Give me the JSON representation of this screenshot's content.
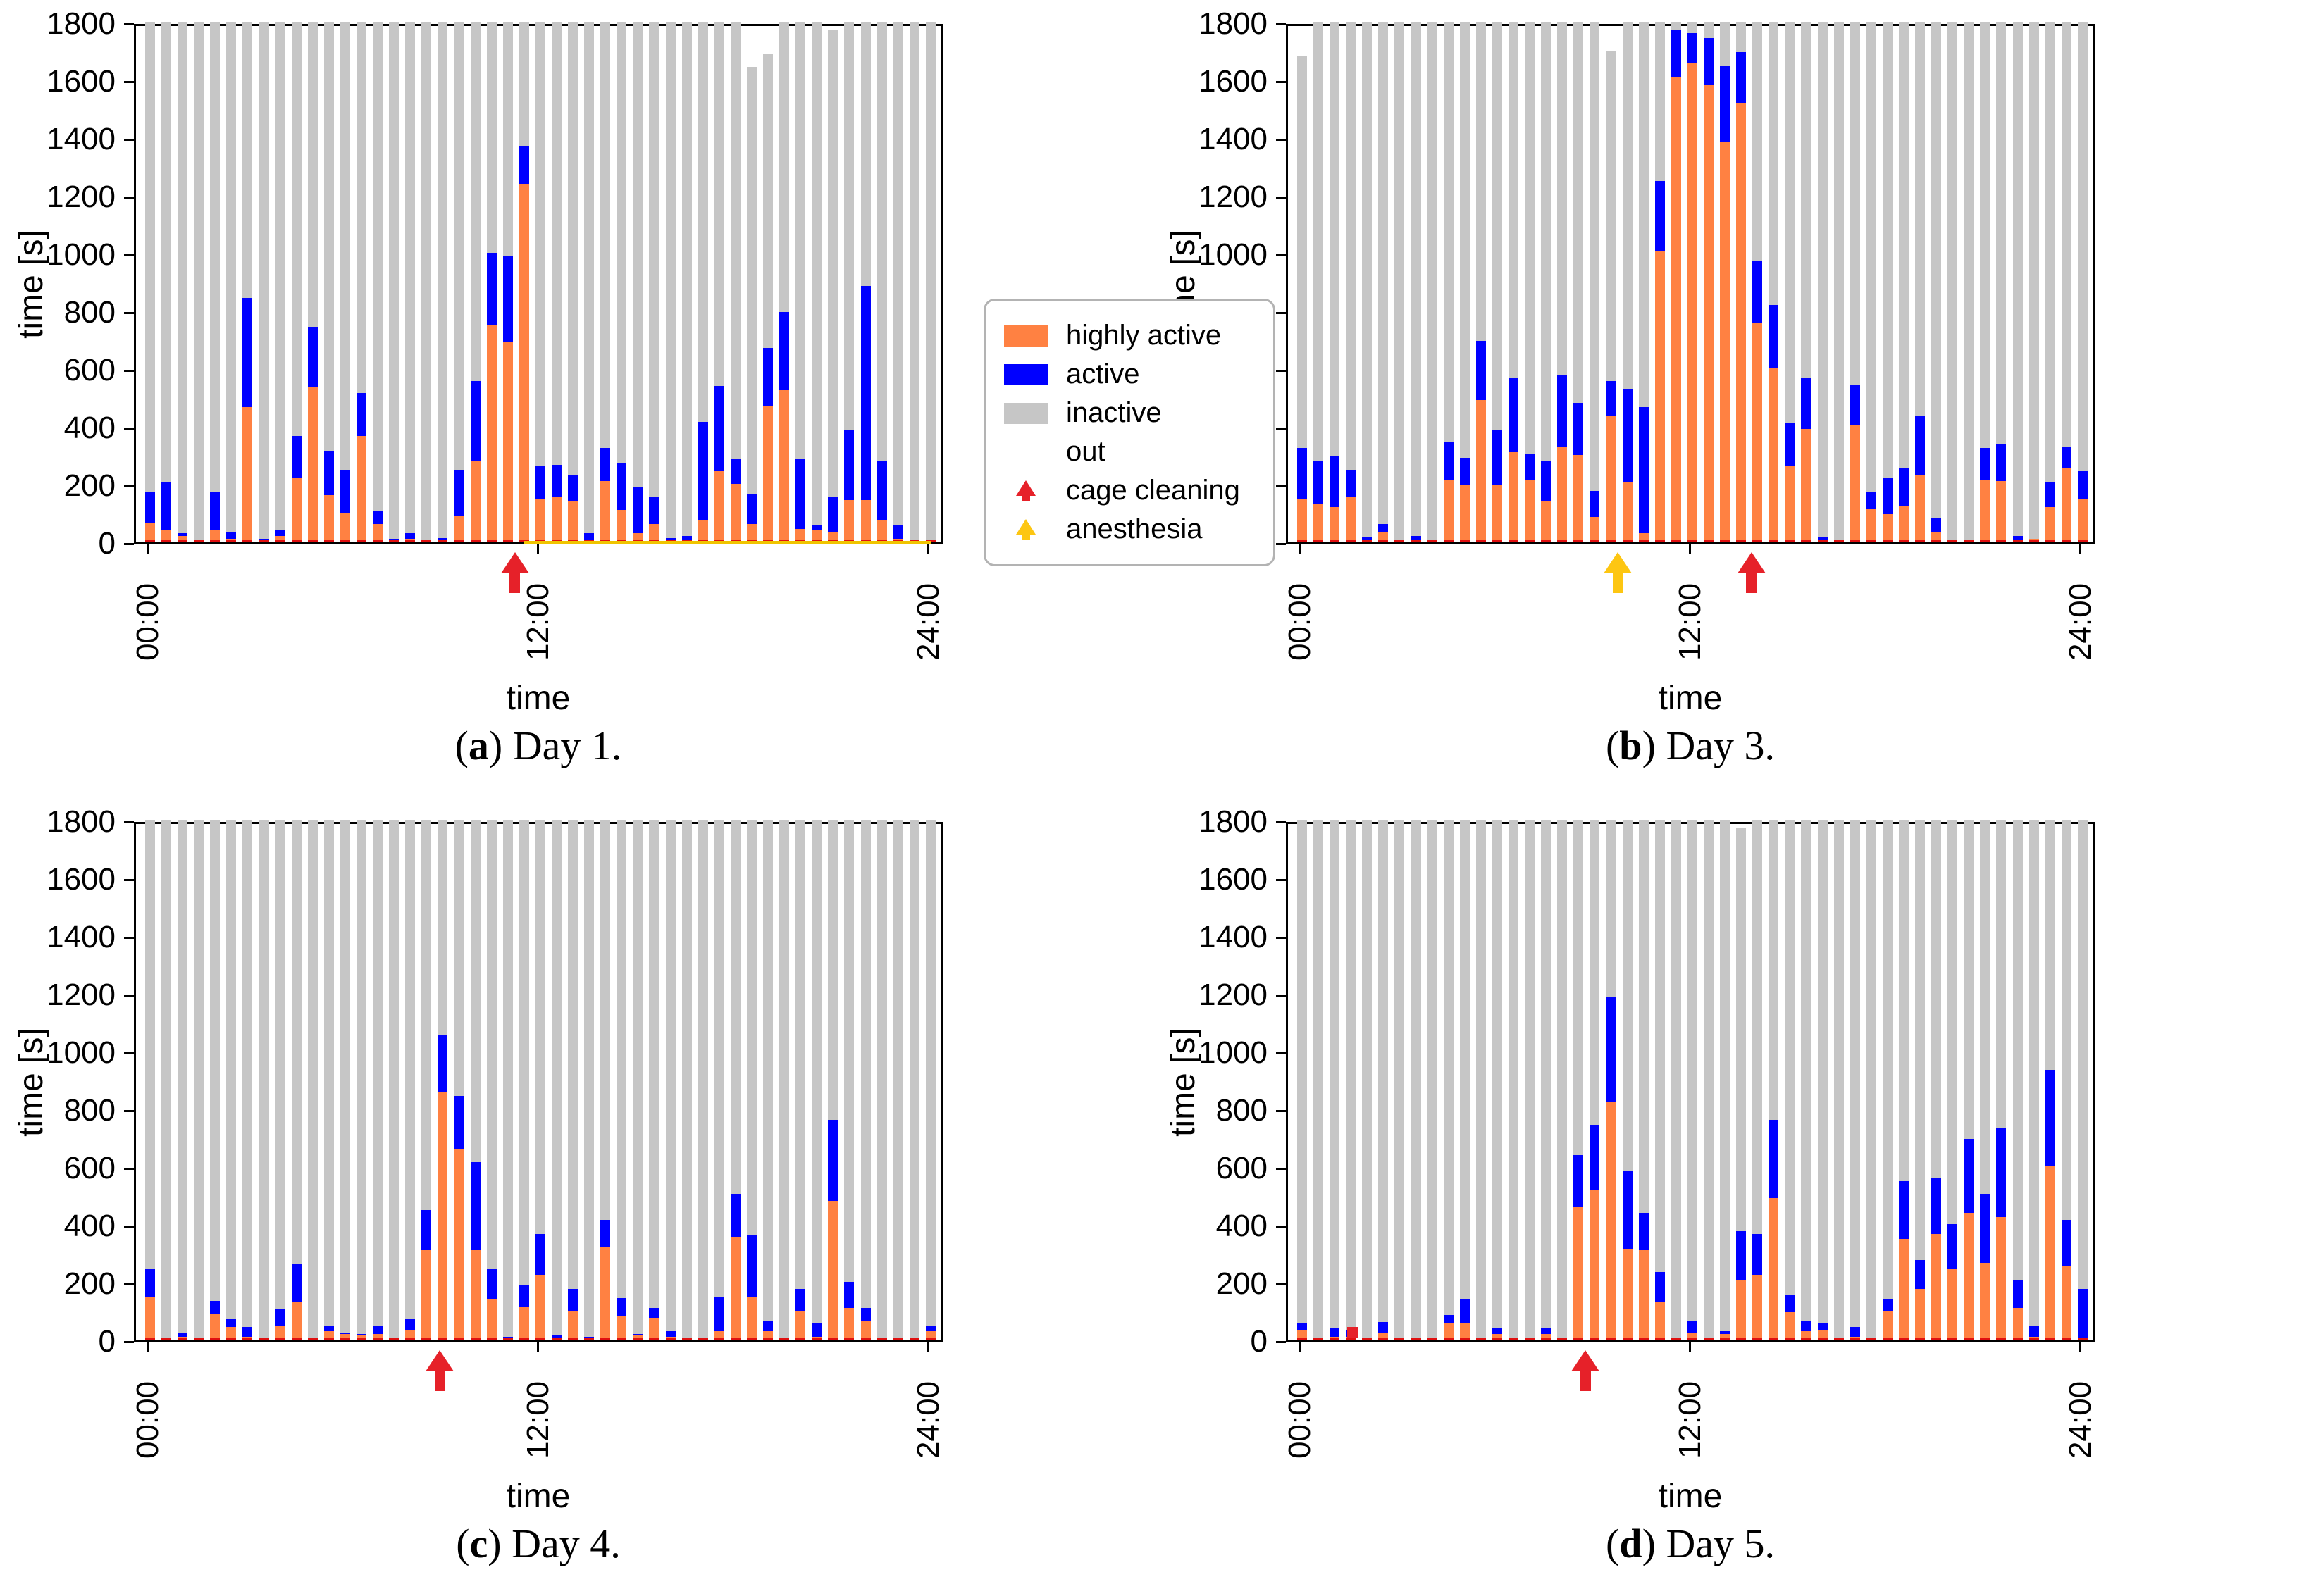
{
  "figure": {
    "background": "#ffffff",
    "rows": 2,
    "cols": 2
  },
  "colors": {
    "highly_active": "#ff8142",
    "active": "#0000ff",
    "inactive": "#c6c6c6",
    "out": "#ffffff",
    "cage_cleaning": "#e62129",
    "anesthesia": "#fdc612",
    "red_base": "#e01010",
    "baseline_highlight": "#f0c400",
    "legend_border": "#b3b3b3"
  },
  "legend": {
    "items": [
      {
        "label": "highly active",
        "swatch": "orange-box"
      },
      {
        "label": "active",
        "swatch": "blue-box"
      },
      {
        "label": "inactive",
        "swatch": "gray-box"
      },
      {
        "label": "out",
        "swatch": "none"
      },
      {
        "label": "cage cleaning",
        "swatch": "red-arrow"
      },
      {
        "label": "anesthesia",
        "swatch": "yellow-arrow"
      }
    ]
  },
  "chart_data": [
    {
      "type": "bar",
      "panel": "a",
      "caption_letter": "a",
      "caption_text": "Day 1.",
      "ylabel": "time [s]",
      "xlabel": "time",
      "ylim": [
        0,
        1800
      ],
      "yticks": [
        0,
        200,
        400,
        600,
        800,
        1000,
        1200,
        1400,
        1600,
        1800
      ],
      "xticks": [
        {
          "label": "00:00",
          "index": 0
        },
        {
          "label": "12:00",
          "index": 24
        },
        {
          "label": "24:00",
          "index": 48
        }
      ],
      "bar_interval_minutes": 30,
      "series_order": [
        "highly active",
        "active",
        "inactive",
        "out"
      ],
      "bars_format": "[highly_active_s, active_s, out_s] ; inactive = 1800 - sum",
      "bars": [
        [
          65,
          105,
          0
        ],
        [
          40,
          165,
          0
        ],
        [
          20,
          10,
          0
        ],
        [
          2,
          3,
          0
        ],
        [
          40,
          130,
          0
        ],
        [
          10,
          25,
          0
        ],
        [
          465,
          380,
          0
        ],
        [
          5,
          5,
          0
        ],
        [
          20,
          20,
          0
        ],
        [
          220,
          145,
          0
        ],
        [
          535,
          210,
          0
        ],
        [
          160,
          155,
          0
        ],
        [
          100,
          150,
          0
        ],
        [
          365,
          150,
          0
        ],
        [
          60,
          45,
          0
        ],
        [
          5,
          5,
          0
        ],
        [
          10,
          20,
          0
        ],
        [
          3,
          5,
          0
        ],
        [
          5,
          8,
          0
        ],
        [
          90,
          160,
          0
        ],
        [
          280,
          275,
          0
        ],
        [
          750,
          250,
          0
        ],
        [
          690,
          300,
          0
        ],
        [
          1240,
          130,
          0
        ],
        [
          150,
          110,
          0
        ],
        [
          155,
          110,
          0
        ],
        [
          140,
          90,
          0
        ],
        [
          5,
          25,
          0
        ],
        [
          210,
          115,
          0
        ],
        [
          110,
          160,
          0
        ],
        [
          30,
          160,
          0
        ],
        [
          60,
          95,
          0
        ],
        [
          5,
          8,
          0
        ],
        [
          5,
          15,
          0
        ],
        [
          75,
          340,
          0
        ],
        [
          245,
          295,
          0
        ],
        [
          200,
          85,
          0
        ],
        [
          60,
          105,
          155
        ],
        [
          470,
          200,
          110
        ],
        [
          525,
          270,
          0
        ],
        [
          45,
          240,
          0
        ],
        [
          40,
          15,
          0
        ],
        [
          35,
          120,
          30
        ],
        [
          145,
          240,
          0
        ],
        [
          145,
          740,
          0
        ],
        [
          75,
          205,
          0
        ],
        [
          10,
          45,
          0
        ],
        [
          2,
          6,
          0
        ],
        [
          0,
          0,
          0
        ]
      ],
      "markers": [
        {
          "kind": "cage_cleaning",
          "hour": 11.3
        }
      ],
      "baseline_highlight": {
        "start_hour": 11.5,
        "end_hour": 24
      }
    },
    {
      "type": "bar",
      "panel": "b",
      "caption_letter": "b",
      "caption_text": "Day 3.",
      "ylabel": "time [s]",
      "xlabel": "time",
      "ylim": [
        0,
        1800
      ],
      "yticks": [
        0,
        200,
        400,
        600,
        800,
        1000,
        1200,
        1400,
        1600,
        1800
      ],
      "xticks": [
        {
          "label": "00:00",
          "index": 0
        },
        {
          "label": "12:00",
          "index": 24
        },
        {
          "label": "24:00",
          "index": 48
        }
      ],
      "bar_interval_minutes": 30,
      "series_order": [
        "highly active",
        "active",
        "inactive",
        "out"
      ],
      "bars_format": "[highly_active_s, active_s, out_s] ; inactive = 1800 - sum",
      "bars": [
        [
          150,
          175,
          120
        ],
        [
          130,
          150,
          0
        ],
        [
          120,
          175,
          0
        ],
        [
          155,
          95,
          0
        ],
        [
          0,
          15,
          0
        ],
        [
          35,
          25,
          0
        ],
        [
          0,
          0,
          0
        ],
        [
          0,
          20,
          0
        ],
        [
          0,
          3,
          0
        ],
        [
          215,
          130,
          0
        ],
        [
          195,
          95,
          0
        ],
        [
          490,
          205,
          0
        ],
        [
          195,
          190,
          0
        ],
        [
          310,
          255,
          0
        ],
        [
          215,
          90,
          0
        ],
        [
          140,
          140,
          0
        ],
        [
          330,
          245,
          0
        ],
        [
          300,
          180,
          0
        ],
        [
          85,
          90,
          0
        ],
        [
          435,
          120,
          100
        ],
        [
          205,
          325,
          0
        ],
        [
          30,
          435,
          0
        ],
        [
          1005,
          245,
          0
        ],
        [
          1610,
          160,
          0
        ],
        [
          1655,
          105,
          0
        ],
        [
          1580,
          165,
          0
        ],
        [
          1385,
          265,
          0
        ],
        [
          1520,
          175,
          0
        ],
        [
          755,
          215,
          0
        ],
        [
          600,
          220,
          0
        ],
        [
          260,
          150,
          0
        ],
        [
          390,
          175,
          0
        ],
        [
          0,
          15,
          0
        ],
        [
          0,
          5,
          0
        ],
        [
          405,
          140,
          0
        ],
        [
          115,
          55,
          0
        ],
        [
          95,
          125,
          0
        ],
        [
          125,
          130,
          0
        ],
        [
          230,
          205,
          0
        ],
        [
          35,
          45,
          0
        ],
        [
          0,
          0,
          0
        ],
        [
          0,
          3,
          0
        ],
        [
          215,
          110,
          0
        ],
        [
          210,
          130,
          0
        ],
        [
          0,
          20,
          0
        ],
        [
          10,
          0,
          0
        ],
        [
          120,
          85,
          0
        ],
        [
          255,
          75,
          0
        ],
        [
          150,
          95,
          0
        ]
      ],
      "markers": [
        {
          "kind": "anesthesia",
          "hour": 9.8
        },
        {
          "kind": "cage_cleaning",
          "hour": 13.9
        }
      ],
      "baseline_highlight": null
    },
    {
      "type": "bar",
      "panel": "c",
      "caption_letter": "c",
      "caption_text": "Day 4.",
      "ylabel": "time [s]",
      "xlabel": "time",
      "ylim": [
        0,
        1800
      ],
      "yticks": [
        0,
        200,
        400,
        600,
        800,
        1000,
        1200,
        1400,
        1600,
        1800
      ],
      "xticks": [
        {
          "label": "00:00",
          "index": 0
        },
        {
          "label": "12:00",
          "index": 24
        },
        {
          "label": "24:00",
          "index": 48
        }
      ],
      "bar_interval_minutes": 30,
      "series_order": [
        "highly active",
        "active",
        "inactive",
        "out"
      ],
      "bars_format": "[highly_active_s, active_s, out_s] ; inactive = 1800 - sum",
      "bars": [
        [
          150,
          95,
          0
        ],
        [
          0,
          5,
          0
        ],
        [
          10,
          15,
          0
        ],
        [
          0,
          0,
          0
        ],
        [
          90,
          45,
          0
        ],
        [
          45,
          25,
          0
        ],
        [
          10,
          35,
          0
        ],
        [
          0,
          0,
          0
        ],
        [
          50,
          55,
          0
        ],
        [
          130,
          130,
          0
        ],
        [
          0,
          0,
          0
        ],
        [
          30,
          20,
          0
        ],
        [
          20,
          5,
          0
        ],
        [
          15,
          5,
          0
        ],
        [
          20,
          30,
          0
        ],
        [
          0,
          0,
          0
        ],
        [
          35,
          35,
          0
        ],
        [
          310,
          140,
          0
        ],
        [
          855,
          200,
          0
        ],
        [
          660,
          185,
          0
        ],
        [
          310,
          305,
          0
        ],
        [
          140,
          105,
          0
        ],
        [
          5,
          5,
          0
        ],
        [
          115,
          75,
          0
        ],
        [
          225,
          140,
          0
        ],
        [
          5,
          10,
          0
        ],
        [
          100,
          75,
          0
        ],
        [
          5,
          5,
          0
        ],
        [
          320,
          95,
          0
        ],
        [
          80,
          65,
          0
        ],
        [
          15,
          5,
          0
        ],
        [
          75,
          35,
          0
        ],
        [
          10,
          20,
          0
        ],
        [
          0,
          3,
          0
        ],
        [
          0,
          0,
          0
        ],
        [
          30,
          120,
          0
        ],
        [
          355,
          150,
          0
        ],
        [
          150,
          210,
          0
        ],
        [
          30,
          35,
          0
        ],
        [
          0,
          0,
          0
        ],
        [
          100,
          75,
          0
        ],
        [
          10,
          45,
          0
        ],
        [
          480,
          280,
          0
        ],
        [
          110,
          90,
          0
        ],
        [
          65,
          45,
          0
        ],
        [
          0,
          0,
          0
        ],
        [
          0,
          0,
          0
        ],
        [
          0,
          0,
          0
        ],
        [
          30,
          20,
          0
        ]
      ],
      "markers": [
        {
          "kind": "cage_cleaning",
          "hour": 9.0
        }
      ],
      "baseline_highlight": null
    },
    {
      "type": "bar",
      "panel": "d",
      "caption_letter": "d",
      "caption_text": "Day 5.",
      "ylabel": "time [s]",
      "xlabel": "time",
      "ylim": [
        0,
        1800
      ],
      "yticks": [
        0,
        200,
        400,
        600,
        800,
        1000,
        1200,
        1400,
        1600,
        1800
      ],
      "xticks": [
        {
          "label": "00:00",
          "index": 0
        },
        {
          "label": "12:00",
          "index": 24
        },
        {
          "label": "24:00",
          "index": 48
        }
      ],
      "bar_interval_minutes": 30,
      "series_order": [
        "highly active",
        "active",
        "inactive",
        "out"
      ],
      "bars_format": "[highly_active_s, active_s, out_s] ; inactive = 1800 - sum",
      "bars": [
        [
          35,
          20,
          0
        ],
        [
          0,
          0,
          0
        ],
        [
          10,
          30,
          0
        ],
        [
          10,
          25,
          0
        ],
        [
          0,
          0,
          0
        ],
        [
          25,
          35,
          0
        ],
        [
          2,
          2,
          0
        ],
        [
          0,
          0,
          0
        ],
        [
          0,
          5,
          0
        ],
        [
          55,
          30,
          0
        ],
        [
          55,
          85,
          0
        ],
        [
          0,
          0,
          0
        ],
        [
          20,
          20,
          0
        ],
        [
          0,
          3,
          0
        ],
        [
          0,
          2,
          0
        ],
        [
          20,
          20,
          0
        ],
        [
          0,
          0,
          0
        ],
        [
          460,
          180,
          0
        ],
        [
          520,
          225,
          0
        ],
        [
          825,
          360,
          0
        ],
        [
          315,
          270,
          0
        ],
        [
          310,
          130,
          0
        ],
        [
          130,
          105,
          0
        ],
        [
          2,
          3,
          0
        ],
        [
          25,
          40,
          0
        ],
        [
          0,
          5,
          0
        ],
        [
          20,
          10,
          0
        ],
        [
          205,
          170,
          30
        ],
        [
          225,
          140,
          0
        ],
        [
          490,
          270,
          0
        ],
        [
          95,
          60,
          0
        ],
        [
          30,
          35,
          0
        ],
        [
          35,
          20,
          0
        ],
        [
          0,
          3,
          0
        ],
        [
          10,
          35,
          0
        ],
        [
          0,
          0,
          0
        ],
        [
          100,
          40,
          0
        ],
        [
          350,
          200,
          0
        ],
        [
          175,
          100,
          0
        ],
        [
          365,
          195,
          0
        ],
        [
          245,
          155,
          0
        ],
        [
          440,
          255,
          0
        ],
        [
          265,
          240,
          0
        ],
        [
          425,
          310,
          0
        ],
        [
          110,
          95,
          0
        ],
        [
          10,
          40,
          0
        ],
        [
          600,
          335,
          0
        ],
        [
          255,
          160,
          0
        ],
        [
          0,
          175,
          0
        ]
      ],
      "markers": [
        {
          "kind": "cage_cleaning",
          "hour": 8.8
        },
        {
          "kind": "red_square",
          "hour": 1.55
        }
      ],
      "baseline_highlight": null
    }
  ]
}
